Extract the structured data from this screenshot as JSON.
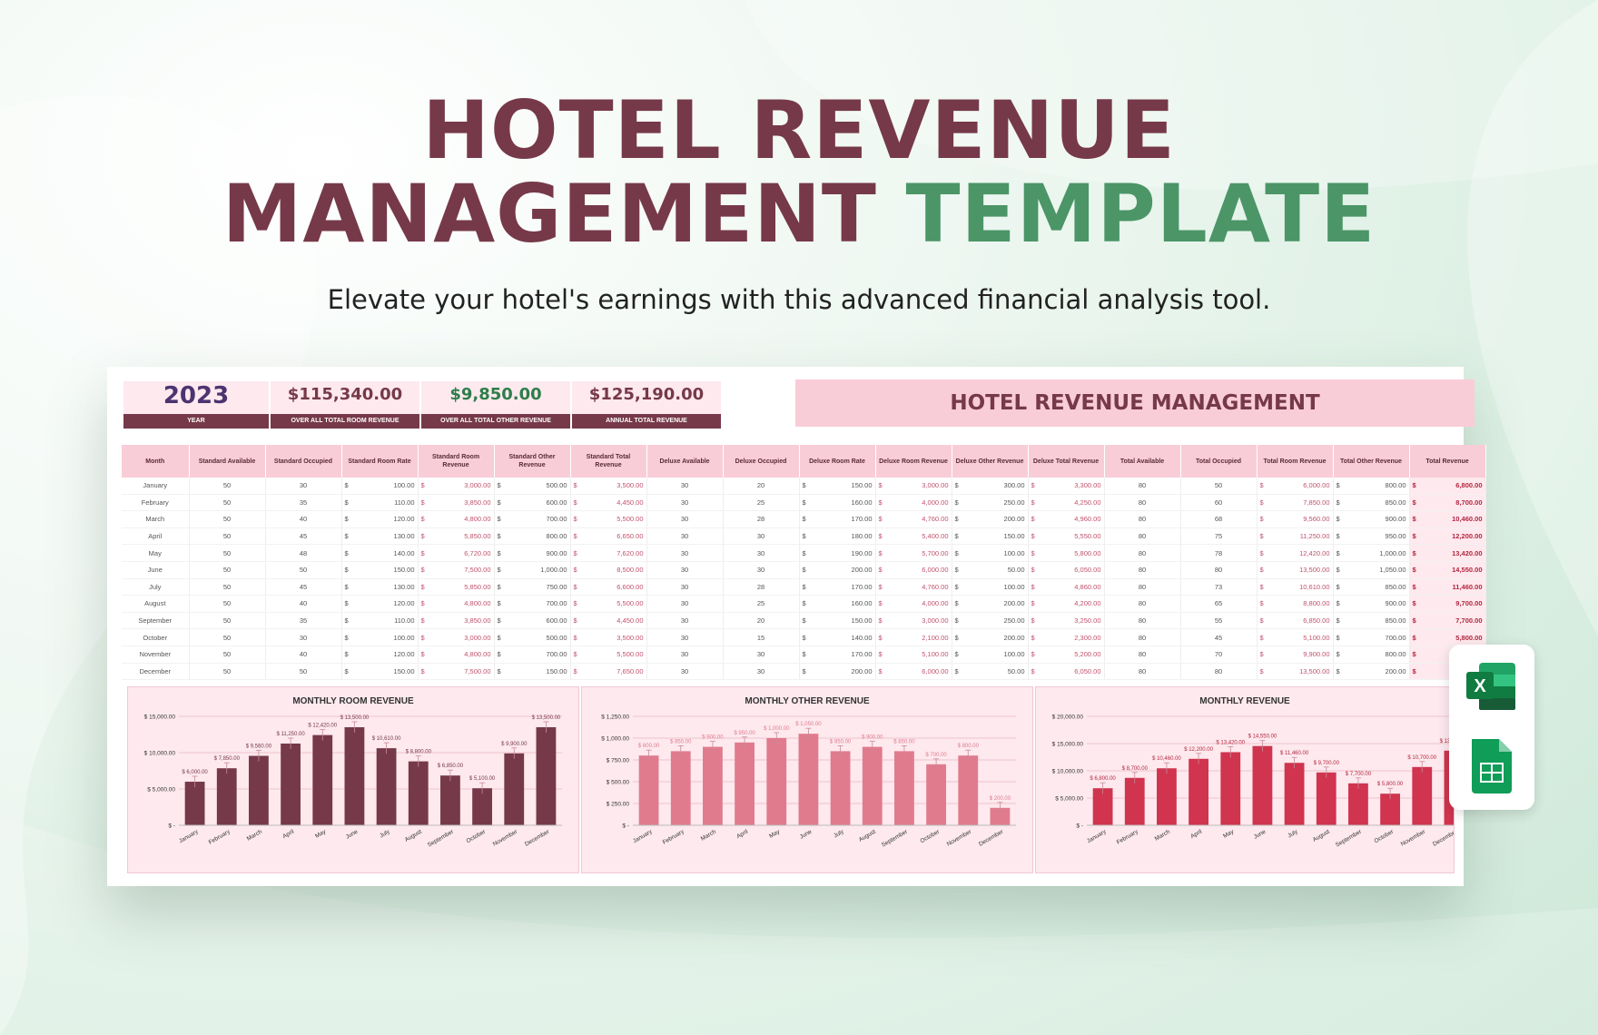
{
  "hero": {
    "title_line1": "HOTEL REVENUE",
    "title_line2a": "MANAGEMENT",
    "title_line2b": "TEMPLATE",
    "subtitle": "Elevate your hotel's earnings with this advanced financial analysis tool."
  },
  "kpis": [
    {
      "value": "2023",
      "label": "YEAR"
    },
    {
      "value": "$115,340.00",
      "label": "OVER ALL TOTAL ROOM REVENUE"
    },
    {
      "value": "$9,850.00",
      "label": "OVER ALL TOTAL OTHER REVENUE"
    },
    {
      "value": "$125,190.00",
      "label": "ANNUAL TOTAL REVENUE"
    }
  ],
  "banner": "HOTEL REVENUE MANAGEMENT",
  "table": {
    "currency": "$",
    "headers": [
      "Month",
      "Standard Available",
      "Standard Occupied",
      "Standard Room Rate",
      "Standard Room Revenue",
      "Standard Other Revenue",
      "Standard Total Revenue",
      "Deluxe Available",
      "Deluxe Occupied",
      "Deluxe Room Rate",
      "Deluxe Room Revenue",
      "Deluxe Other Revenue",
      "Deluxe Total Revenue",
      "Total Available",
      "Total Occupied",
      "Total Room Revenue",
      "Total Other Revenue",
      "Total Revenue"
    ],
    "rows": [
      [
        "January",
        "50",
        "30",
        "100.00",
        "3,000.00",
        "500.00",
        "3,500.00",
        "30",
        "20",
        "150.00",
        "3,000.00",
        "300.00",
        "3,300.00",
        "80",
        "50",
        "6,000.00",
        "800.00",
        "6,800.00"
      ],
      [
        "February",
        "50",
        "35",
        "110.00",
        "3,850.00",
        "600.00",
        "4,450.00",
        "30",
        "25",
        "160.00",
        "4,000.00",
        "250.00",
        "4,250.00",
        "80",
        "60",
        "7,850.00",
        "850.00",
        "8,700.00"
      ],
      [
        "March",
        "50",
        "40",
        "120.00",
        "4,800.00",
        "700.00",
        "5,500.00",
        "30",
        "28",
        "170.00",
        "4,760.00",
        "200.00",
        "4,960.00",
        "80",
        "68",
        "9,560.00",
        "900.00",
        "10,460.00"
      ],
      [
        "April",
        "50",
        "45",
        "130.00",
        "5,850.00",
        "800.00",
        "6,650.00",
        "30",
        "30",
        "180.00",
        "5,400.00",
        "150.00",
        "5,550.00",
        "80",
        "75",
        "11,250.00",
        "950.00",
        "12,200.00"
      ],
      [
        "May",
        "50",
        "48",
        "140.00",
        "6,720.00",
        "900.00",
        "7,620.00",
        "30",
        "30",
        "190.00",
        "5,700.00",
        "100.00",
        "5,800.00",
        "80",
        "78",
        "12,420.00",
        "1,000.00",
        "13,420.00"
      ],
      [
        "June",
        "50",
        "50",
        "150.00",
        "7,500.00",
        "1,000.00",
        "8,500.00",
        "30",
        "30",
        "200.00",
        "6,000.00",
        "50.00",
        "6,050.00",
        "80",
        "80",
        "13,500.00",
        "1,050.00",
        "14,550.00"
      ],
      [
        "July",
        "50",
        "45",
        "130.00",
        "5,850.00",
        "750.00",
        "6,600.00",
        "30",
        "28",
        "170.00",
        "4,760.00",
        "100.00",
        "4,860.00",
        "80",
        "73",
        "10,610.00",
        "850.00",
        "11,460.00"
      ],
      [
        "August",
        "50",
        "40",
        "120.00",
        "4,800.00",
        "700.00",
        "5,500.00",
        "30",
        "25",
        "160.00",
        "4,000.00",
        "200.00",
        "4,200.00",
        "80",
        "65",
        "8,800.00",
        "900.00",
        "9,700.00"
      ],
      [
        "September",
        "50",
        "35",
        "110.00",
        "3,850.00",
        "600.00",
        "4,450.00",
        "30",
        "20",
        "150.00",
        "3,000.00",
        "250.00",
        "3,250.00",
        "80",
        "55",
        "6,850.00",
        "850.00",
        "7,700.00"
      ],
      [
        "October",
        "50",
        "30",
        "100.00",
        "3,000.00",
        "500.00",
        "3,500.00",
        "30",
        "15",
        "140.00",
        "2,100.00",
        "200.00",
        "2,300.00",
        "80",
        "45",
        "5,100.00",
        "700.00",
        "5,800.00"
      ],
      [
        "November",
        "50",
        "40",
        "120.00",
        "4,800.00",
        "700.00",
        "5,500.00",
        "30",
        "30",
        "170.00",
        "5,100.00",
        "100.00",
        "5,200.00",
        "80",
        "70",
        "9,900.00",
        "800.00",
        "10,700.00"
      ],
      [
        "December",
        "50",
        "50",
        "150.00",
        "7,500.00",
        "150.00",
        "7,650.00",
        "30",
        "30",
        "200.00",
        "6,000.00",
        "50.00",
        "6,050.00",
        "80",
        "80",
        "13,500.00",
        "200.00",
        "13,700.00"
      ]
    ]
  },
  "chart_data": [
    {
      "type": "bar",
      "title": "MONTHLY ROOM REVENUE",
      "categories": [
        "January",
        "February",
        "March",
        "April",
        "May",
        "June",
        "July",
        "August",
        "September",
        "October",
        "November",
        "December"
      ],
      "values": [
        6000,
        7850,
        9560,
        11250,
        12420,
        13500,
        10610,
        8800,
        6850,
        5100,
        9900,
        13500
      ],
      "data_labels": [
        "$ 6,000.00",
        "$ 7,850.00",
        "$ 9,560.00",
        "$ 11,250.00",
        "$ 12,420.00",
        "$ 13,500.00",
        "$ 10,610.00",
        "$ 8,800.00",
        "$ 6,850.00",
        "$ 5,100.00",
        "$ 9,900.00",
        "$ 13,500.00"
      ],
      "ylim": [
        0,
        15000
      ],
      "yticks": [
        0,
        5000,
        10000,
        15000
      ],
      "ytick_labels": [
        "$ -",
        "$ 5,000.00",
        "$ 10,000.00",
        "$ 15,000.00"
      ],
      "color": "#76394a",
      "label_color": "#76394a",
      "grid": true
    },
    {
      "type": "bar",
      "title": "MONTHLY OTHER REVENUE",
      "categories": [
        "January",
        "February",
        "March",
        "April",
        "May",
        "June",
        "July",
        "August",
        "September",
        "October",
        "November",
        "December"
      ],
      "values": [
        800,
        850,
        900,
        950,
        1000,
        1050,
        850,
        900,
        850,
        700,
        800,
        200
      ],
      "data_labels": [
        "$ 800.00",
        "$ 850.00",
        "$ 900.00",
        "$ 950.00",
        "$ 1,000.00",
        "$ 1,050.00",
        "$ 850.00",
        "$ 900.00",
        "$ 850.00",
        "$ 700.00",
        "$ 800.00",
        "$ 200.00"
      ],
      "ylim": [
        0,
        1250
      ],
      "yticks": [
        0,
        250,
        500,
        750,
        1000,
        1250
      ],
      "ytick_labels": [
        "$ -",
        "$ 250.00",
        "$ 500.00",
        "$ 750.00",
        "$ 1,000.00",
        "$ 1,250.00"
      ],
      "color": "#e07b8d",
      "label_color": "#e07b8d",
      "grid": true
    },
    {
      "type": "bar",
      "title": "MONTHLY REVENUE",
      "categories": [
        "January",
        "February",
        "March",
        "April",
        "May",
        "June",
        "July",
        "August",
        "September",
        "October",
        "November",
        "December"
      ],
      "values": [
        6800,
        8700,
        10460,
        12200,
        13420,
        14550,
        11460,
        9700,
        7700,
        5800,
        10700,
        13700
      ],
      "data_labels": [
        "$ 6,800.00",
        "$ 8,700.00",
        "$ 10,460.00",
        "$ 12,200.00",
        "$ 13,420.00",
        "$ 14,550.00",
        "$ 11,460.00",
        "$ 9,700.00",
        "$ 7,700.00",
        "$ 5,800.00",
        "$ 10,700.00",
        "$ 13,700.00"
      ],
      "ylim": [
        0,
        20000
      ],
      "yticks": [
        0,
        5000,
        10000,
        15000,
        20000
      ],
      "ytick_labels": [
        "$ -",
        "$ 5,000.00",
        "$ 10,000.00",
        "$ 15,000.00",
        "$ 20,000.00"
      ],
      "color": "#d0344f",
      "label_color": "#b3263f",
      "grid": true
    }
  ],
  "icons": [
    "excel-icon",
    "sheets-icon"
  ]
}
